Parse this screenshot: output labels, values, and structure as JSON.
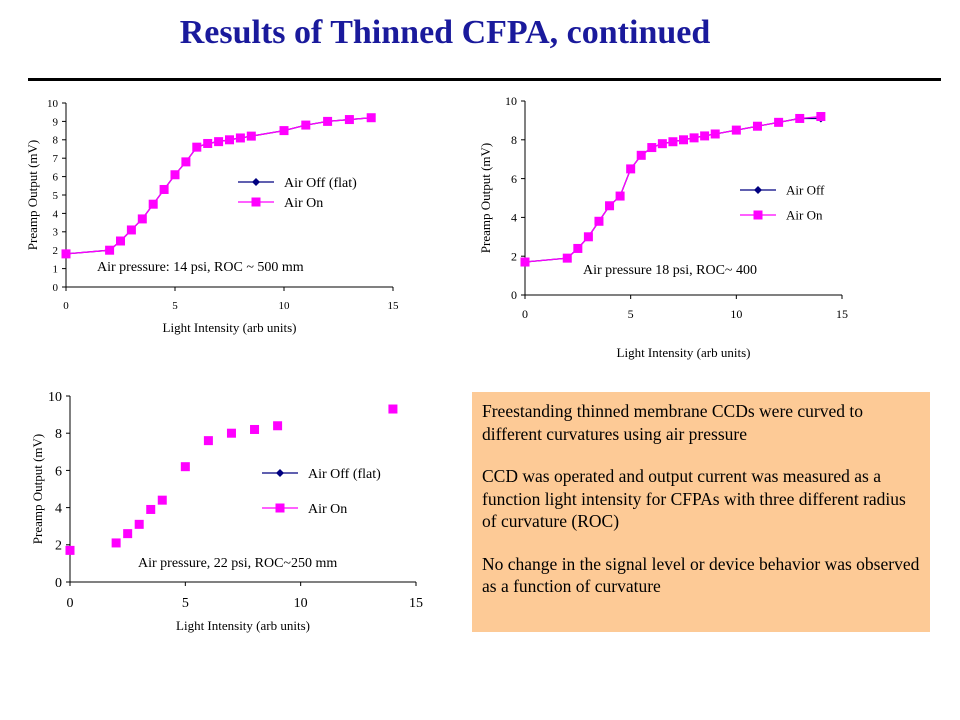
{
  "slide": {
    "title": "Results of Thinned CFPA, continued",
    "note": [
      "Freestanding thinned membrane CCDs were curved to different curvatures using air pressure",
      "CCD was operated and output current was measured as a function light intensity for CFPAs with three different radius of curvature (ROC)",
      "No change in the signal level or device behavior was observed as a function of curvature"
    ]
  },
  "colors": {
    "title": "#1a1a9c",
    "air_off": "#000080",
    "air_on": "#ff00ff",
    "note_bg": "#fdca96"
  },
  "chart_data": [
    {
      "type": "line",
      "xlabel": "Light Intensity (arb units)",
      "ylabel": "Preamp Output (mV)",
      "xlim": [
        0,
        15
      ],
      "ylim": [
        0,
        10
      ],
      "xticks": [
        0,
        5,
        10,
        15
      ],
      "yticks": [
        0,
        1,
        2,
        3,
        4,
        5,
        6,
        7,
        8,
        9,
        10
      ],
      "annotation": "Air pressure: 14 psi, ROC ~ 500 mm",
      "legend": [
        "Air Off (flat)",
        "Air On"
      ],
      "series": [
        {
          "name": "Air Off (flat)",
          "marker": "diamond",
          "x": [
            0,
            2,
            2.5,
            3,
            3.5,
            4,
            4.5,
            5,
            5.5,
            6,
            6.5,
            7,
            7.5,
            8,
            8.5,
            10,
            11,
            12,
            13,
            14
          ],
          "y": [
            1.8,
            2.0,
            2.5,
            3.1,
            3.7,
            4.5,
            5.3,
            6.1,
            6.8,
            7.6,
            7.8,
            7.9,
            8.0,
            8.1,
            8.2,
            8.5,
            8.8,
            9.0,
            9.1,
            9.2
          ]
        },
        {
          "name": "Air On",
          "marker": "square",
          "x": [
            0,
            2,
            2.5,
            3,
            3.5,
            4,
            4.5,
            5,
            5.5,
            6,
            6.5,
            7,
            7.5,
            8,
            8.5,
            10,
            11,
            12,
            13,
            14
          ],
          "y": [
            1.8,
            2.0,
            2.5,
            3.1,
            3.7,
            4.5,
            5.3,
            6.1,
            6.8,
            7.6,
            7.8,
            7.9,
            8.0,
            8.1,
            8.2,
            8.5,
            8.8,
            9.0,
            9.1,
            9.2
          ]
        }
      ]
    },
    {
      "type": "line",
      "xlabel": "Light Intensity (arb units)",
      "ylabel": "Preamp Output (mV)",
      "xlim": [
        0,
        15
      ],
      "ylim": [
        0,
        10
      ],
      "xticks": [
        0,
        5,
        10,
        15
      ],
      "yticks": [
        0,
        2,
        4,
        6,
        8,
        10
      ],
      "annotation": "Air pressure 18 psi, ROC~ 400",
      "legend": [
        "Air Off",
        "Air On"
      ],
      "series": [
        {
          "name": "Air Off",
          "marker": "diamond",
          "x": [
            0,
            2,
            2.5,
            3,
            3.5,
            4,
            4.5,
            5,
            5.5,
            6,
            6.5,
            7,
            7.5,
            8,
            8.5,
            9,
            10,
            11,
            12,
            13,
            14
          ],
          "y": [
            1.7,
            1.9,
            2.4,
            3.0,
            3.8,
            4.6,
            5.1,
            6.5,
            7.2,
            7.6,
            7.8,
            7.9,
            8.0,
            8.1,
            8.2,
            8.3,
            8.5,
            8.7,
            8.9,
            9.1,
            9.1
          ]
        },
        {
          "name": "Air On",
          "marker": "square",
          "x": [
            0,
            2,
            2.5,
            3,
            3.5,
            4,
            4.5,
            5,
            5.5,
            6,
            6.5,
            7,
            7.5,
            8,
            8.5,
            9,
            10,
            11,
            12,
            13,
            14
          ],
          "y": [
            1.7,
            1.9,
            2.4,
            3.0,
            3.8,
            4.6,
            5.1,
            6.5,
            7.2,
            7.6,
            7.8,
            7.9,
            8.0,
            8.1,
            8.2,
            8.3,
            8.5,
            8.7,
            8.9,
            9.1,
            9.2
          ]
        }
      ]
    },
    {
      "type": "scatter",
      "xlabel": "Light Intensity (arb units)",
      "ylabel": "Preamp Output (mV)",
      "xlim": [
        0,
        15
      ],
      "ylim": [
        0,
        10
      ],
      "xticks": [
        0,
        5,
        10,
        15
      ],
      "yticks": [
        0,
        2,
        4,
        6,
        8,
        10
      ],
      "annotation": "Air pressure, 22 psi, ROC~250 mm",
      "legend": [
        "Air Off (flat)",
        "Air On"
      ],
      "series": [
        {
          "name": "Air Off (flat)",
          "marker": "diamond",
          "x": [
            0,
            2,
            2.5,
            3,
            3.5,
            4,
            5,
            6,
            7,
            8,
            9,
            14
          ],
          "y": [
            1.7,
            2.1,
            2.6,
            3.1,
            3.9,
            4.4,
            6.2,
            7.6,
            8.0,
            8.2,
            8.4,
            9.3
          ]
        },
        {
          "name": "Air On",
          "marker": "square",
          "x": [
            0,
            2,
            2.5,
            3,
            3.5,
            4,
            5,
            6,
            7,
            8,
            9,
            14
          ],
          "y": [
            1.7,
            2.1,
            2.6,
            3.1,
            3.9,
            4.4,
            6.2,
            7.6,
            8.0,
            8.2,
            8.4,
            9.3
          ]
        }
      ]
    }
  ]
}
